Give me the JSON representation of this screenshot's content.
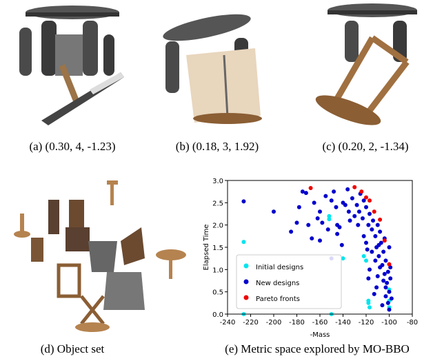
{
  "captions": {
    "a": "(a) (0.30, 4, -1.23)",
    "b": "(b) (0.18, 3, 1.92)",
    "c": "(c) (0.20, 2, -1.34)",
    "d": "(d) Object set",
    "e": "(e) Metric space explored by MO-BBO"
  },
  "chart_data": {
    "type": "scatter",
    "xlabel": "-Mass",
    "ylabel": "Elapsed Time",
    "xlim": [
      -240,
      -80
    ],
    "xticks": [
      -240,
      -220,
      -200,
      -180,
      -160,
      -140,
      -120,
      -100,
      -80
    ],
    "ylim": [
      0,
      3
    ],
    "yticks": [
      {
        "value": 0,
        "label": "0.0"
      },
      0.5,
      {
        "value": 1,
        "label": "1.0"
      },
      1.5,
      {
        "value": 2,
        "label": "2.0"
      },
      2.5,
      {
        "value": 3,
        "label": "3.0"
      }
    ],
    "legend": "lower left",
    "series": [
      {
        "name": "Initial designs",
        "color": "#00e5ee",
        "x": [
          -226,
          -226,
          -152,
          -152,
          -122,
          -120,
          -118,
          -118,
          -117,
          -100,
          -100,
          -100,
          -150,
          -140
        ],
        "values": [
          1.62,
          0.0,
          2.2,
          2.13,
          1.3,
          1.2,
          0.3,
          0.25,
          0.15,
          0.3,
          0.15,
          0.55,
          0.0,
          1.25
        ]
      },
      {
        "name": "New designs",
        "color": "#0000cc",
        "x": [
          -226,
          -200,
          -185,
          -180,
          -178,
          -175,
          -172,
          -170,
          -165,
          -162,
          -160,
          -158,
          -155,
          -153,
          -150,
          -148,
          -146,
          -145,
          -143,
          -140,
          -138,
          -136,
          -134,
          -132,
          -130,
          -128,
          -126,
          -125,
          -123,
          -122,
          -120,
          -118,
          -117,
          -115,
          -114,
          -112,
          -111,
          -110,
          -109,
          -108,
          -107,
          -106,
          -105,
          -104,
          -103,
          -102,
          -101,
          -100,
          -99,
          -98,
          -103,
          -105,
          -108,
          -110,
          -112,
          -115,
          -117,
          -118,
          -120,
          -122,
          -106,
          -101,
          -99,
          -100,
          -113,
          -141,
          -150,
          -160,
          -167,
          -145,
          -135,
          -127,
          -119,
          -111,
          -103,
          -100,
          -104,
          -109
        ],
        "values": [
          2.53,
          2.3,
          1.85,
          2.05,
          2.4,
          2.75,
          2.72,
          2.0,
          2.5,
          2.15,
          2.3,
          2.05,
          2.65,
          1.9,
          2.55,
          2.75,
          2.4,
          2.0,
          1.95,
          2.5,
          2.45,
          2.8,
          2.1,
          2.6,
          2.2,
          2.45,
          2.3,
          2.7,
          2.15,
          2.55,
          2.4,
          2.0,
          2.25,
          1.9,
          2.1,
          1.75,
          1.5,
          2.0,
          1.3,
          1.85,
          1.6,
          1.1,
          1.4,
          0.9,
          1.2,
          0.7,
          0.95,
          0.5,
          0.8,
          0.35,
          0.6,
          0.75,
          1.05,
          0.85,
          1.2,
          1.4,
          1.0,
          0.8,
          1.6,
          1.75,
          0.2,
          0.25,
          1.05,
          1.5,
          0.45,
          1.55,
          1.25,
          1.65,
          1.7,
          1.8,
          2.3,
          2.0,
          1.45,
          0.6,
          0.4,
          0.1,
          1.7,
          1.55
        ]
      },
      {
        "name": "Pareto fronts",
        "color": "#ee0000",
        "x": [
          -168,
          -130,
          -124,
          -120,
          -117,
          -113,
          -108,
          -104,
          -100
        ],
        "values": [
          2.83,
          2.85,
          2.75,
          2.62,
          2.55,
          2.3,
          2.12,
          1.65,
          1.12
        ]
      }
    ]
  }
}
